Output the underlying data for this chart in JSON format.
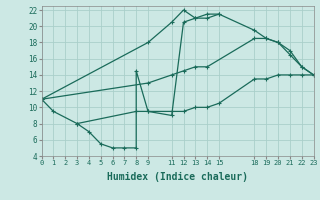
{
  "background_color": "#cce8e4",
  "grid_color": "#aacfca",
  "line_color": "#1a6b5a",
  "line1": {
    "x": [
      0,
      1,
      3,
      4,
      5,
      6,
      7,
      8,
      8,
      9,
      11,
      12,
      13,
      14,
      15
    ],
    "y": [
      11,
      9.5,
      8,
      7,
      5.5,
      5,
      5,
      5,
      14.5,
      9.5,
      9,
      20.5,
      21,
      21,
      21.5
    ]
  },
  "line2": {
    "x": [
      0,
      9,
      11,
      12,
      13,
      14,
      15,
      18,
      19,
      20,
      21,
      22,
      23
    ],
    "y": [
      11,
      18,
      20.5,
      22,
      21,
      21.5,
      21.5,
      19.5,
      18.5,
      18,
      17,
      15,
      14
    ]
  },
  "line3": {
    "x": [
      0,
      9,
      11,
      12,
      13,
      14,
      18,
      19,
      20,
      21,
      22,
      23
    ],
    "y": [
      11,
      13,
      14,
      14.5,
      15,
      15,
      18.5,
      18.5,
      18,
      16.5,
      15,
      14
    ]
  },
  "line4": {
    "x": [
      3,
      8,
      9,
      11,
      12,
      13,
      14,
      15,
      18,
      19,
      20,
      21,
      22,
      23
    ],
    "y": [
      8,
      9.5,
      9.5,
      9.5,
      9.5,
      10,
      10,
      10.5,
      13.5,
      13.5,
      14,
      14,
      14,
      14
    ]
  },
  "xlim": [
    0,
    23
  ],
  "ylim": [
    4,
    22.5
  ],
  "xtick_positions": [
    0,
    1,
    2,
    3,
    4,
    5,
    6,
    7,
    8,
    9,
    11,
    12,
    13,
    14,
    15,
    18,
    19,
    20,
    21,
    22,
    23
  ],
  "xtick_labels": [
    "0",
    "1",
    "2",
    "3",
    "4",
    "5",
    "6",
    "7",
    "8",
    "9",
    "11",
    "12",
    "13",
    "14",
    "15",
    "18",
    "19",
    "20",
    "21",
    "22",
    "23"
  ],
  "yticks": [
    4,
    6,
    8,
    10,
    12,
    14,
    16,
    18,
    20,
    22
  ],
  "xlabel": "Humidex (Indice chaleur)",
  "xlabel_fontsize": 7,
  "tick_fontsize": 5,
  "linewidth": 0.9,
  "markersize": 2.5
}
